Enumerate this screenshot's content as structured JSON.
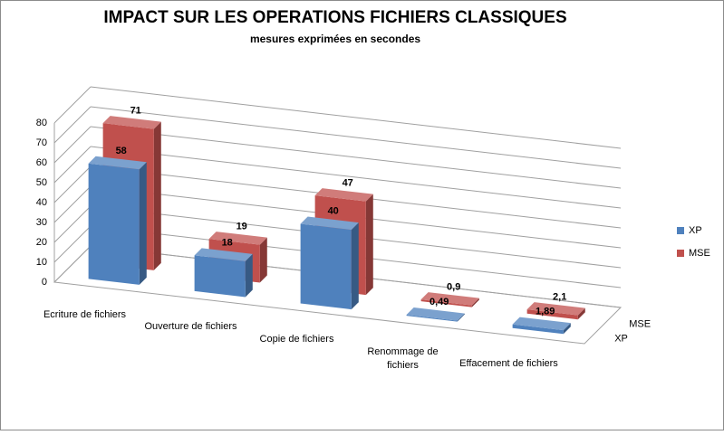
{
  "chart_data": {
    "type": "bar3d",
    "title": "IMPACT SUR LES OPERATIONS FICHIERS CLASSIQUES",
    "subtitle": "mesures exprimées en secondes",
    "categories": [
      "Ecriture de fichiers",
      "Ouverture de fichiers",
      "Copie de fichiers",
      "Renommage de fichiers",
      "Effacement de fichiers"
    ],
    "series": [
      {
        "name": "XP",
        "color": "#4f81bd",
        "values": [
          58,
          18,
          40,
          0.49,
          1.89
        ],
        "value_labels": [
          "58",
          "18",
          "40",
          "0,49",
          "1,89"
        ]
      },
      {
        "name": "MSE",
        "color": "#c0504d",
        "values": [
          71,
          19,
          47,
          0.9,
          2.1
        ],
        "value_labels": [
          "71",
          "19",
          "47",
          "0,9",
          "2,1"
        ]
      }
    ],
    "ylim": [
      0,
      80
    ],
    "yticks": [
      0,
      10,
      20,
      30,
      40,
      50,
      60,
      70,
      80
    ],
    "grid": true,
    "legend": "right"
  }
}
